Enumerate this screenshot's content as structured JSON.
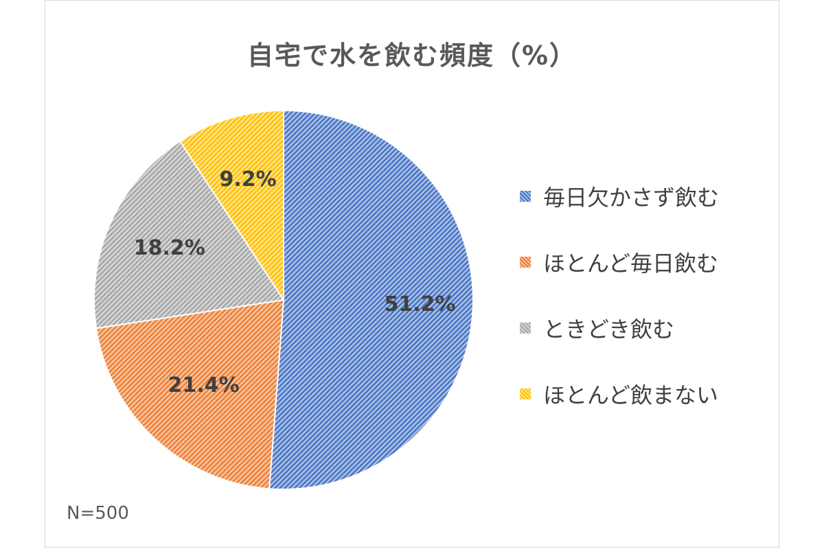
{
  "chart_data": {
    "type": "pie",
    "title": "自宅で水を飲む頻度（%）",
    "categories": [
      "毎日欠かさず飲む",
      "ほとんど毎日飲む",
      "ときどき飲む",
      "ほとんど飲まない"
    ],
    "values": [
      51.2,
      21.4,
      18.2,
      9.2
    ],
    "labels": [
      "51.2%",
      "21.4%",
      "18.2%",
      "9.2%"
    ],
    "colors": [
      "#4472c4",
      "#ed7d31",
      "#a5a5a5",
      "#ffc000"
    ],
    "fill_style": "diagonal-hatch",
    "legend": "right",
    "note": "N=500"
  }
}
